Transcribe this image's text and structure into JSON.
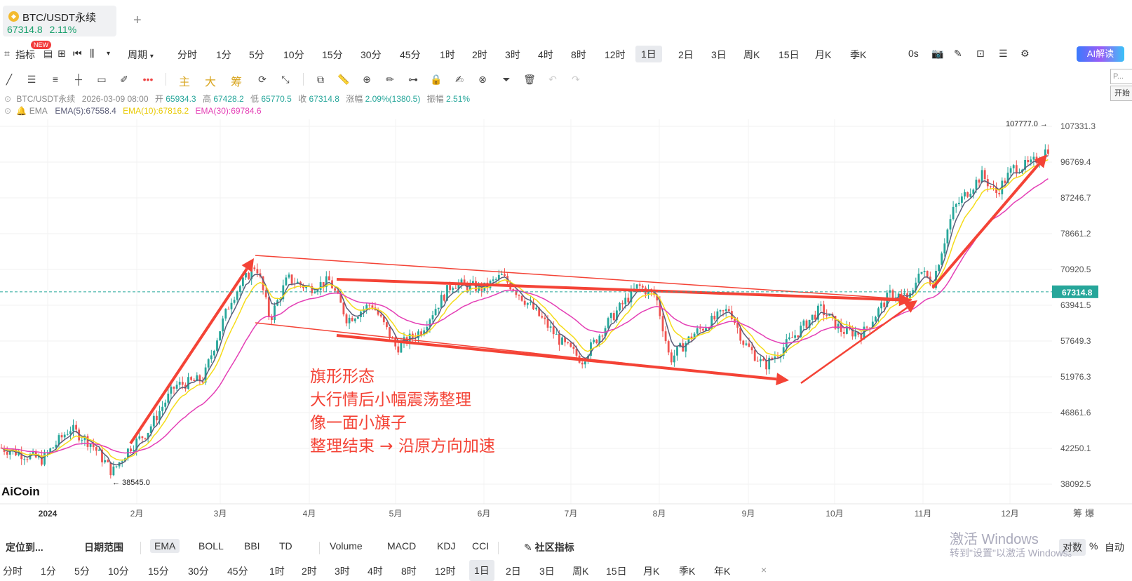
{
  "tab": {
    "symbol": "BTC/USDT永续",
    "price": "67314.8",
    "change": "2.11%",
    "add": "+"
  },
  "toolbar": {
    "indicators_label": "指标",
    "new_badge": "NEW",
    "period_label": "周期",
    "periods": [
      "分时",
      "1分",
      "5分",
      "10分",
      "15分",
      "30分",
      "45分",
      "1时",
      "2时",
      "3时",
      "4时",
      "8时",
      "12时",
      "1日",
      "2日",
      "3日",
      "周K",
      "15日",
      "月K",
      "季K"
    ],
    "active_period": "1日",
    "countdown": "0s",
    "ai_label": "AI解读"
  },
  "drawing_tools": {
    "main_label": "主",
    "big_label": "大",
    "chip_label": "筹"
  },
  "side_panel": {
    "input_placeholder": "P...",
    "button_label": "开始"
  },
  "ohlc": {
    "symbol": "BTC/USDT永续",
    "datetime": "2026-03-09 08:00",
    "open_label": "开",
    "open": "65934.3",
    "high_label": "高",
    "high": "67428.2",
    "low_label": "低",
    "low": "65770.5",
    "close_label": "收",
    "close": "67314.8",
    "chg_label": "涨幅",
    "chg": "2.09%(1380.5)",
    "amp_label": "振幅",
    "amp": "2.51%"
  },
  "ema_row": {
    "name": "EMA",
    "ema5": "EMA(5):67558.4",
    "ema10": "EMA(10):67816.2",
    "ema30": "EMA(30):69784.6"
  },
  "chart_data": {
    "type": "candlestick",
    "y_ticks": [
      "107331.3",
      "96769.4",
      "87246.7",
      "78661.2",
      "70920.5",
      "63941.5",
      "57649.3",
      "51976.3",
      "46861.6",
      "42250.1",
      "38092.5"
    ],
    "x_ticks": [
      "2024",
      "2月",
      "3月",
      "4月",
      "5月",
      "6月",
      "7月",
      "8月",
      "9月",
      "10月",
      "11月",
      "12月"
    ],
    "current_price_tag": "67314.8",
    "max_label": "107777.0",
    "min_label": "38545.0",
    "y_log_scale": true,
    "ylim": [
      36000,
      112000
    ],
    "approx_close_path": [
      {
        "x": "2024",
        "y": 42500
      },
      {
        "x": "1月中",
        "y": 44500
      },
      {
        "x": "1月下",
        "y": 40000
      },
      {
        "x": "2月",
        "y": 43000
      },
      {
        "x": "2月下",
        "y": 52000
      },
      {
        "x": "3月中",
        "y": 73000
      },
      {
        "x": "4月",
        "y": 68000
      },
      {
        "x": "4月下",
        "y": 63000
      },
      {
        "x": "5月",
        "y": 61000
      },
      {
        "x": "6月",
        "y": 69000
      },
      {
        "x": "7月",
        "y": 57000
      },
      {
        "x": "8月",
        "y": 63000
      },
      {
        "x": "9月",
        "y": 55000
      },
      {
        "x": "10月",
        "y": 62000
      },
      {
        "x": "11月",
        "y": 70000
      },
      {
        "x": "12月",
        "y": 96000
      },
      {
        "x": "12月下",
        "y": 104000
      }
    ],
    "series": [
      {
        "name": "EMA(5)",
        "color": "#5b5d78"
      },
      {
        "name": "EMA(10)",
        "color": "#f5dc19"
      },
      {
        "name": "EMA(30)",
        "color": "#e43fb5"
      }
    ],
    "annotations": [
      "旗形形态",
      "大行情后小幅震荡整理",
      "像一面小旗子",
      "整理结束 → 沿原方向加速"
    ],
    "logo": "AiCoin",
    "colors": {
      "up": "#26a69a",
      "down": "#ef5350",
      "annotation": "#f44336",
      "price_line": "#26a69a"
    }
  },
  "bottom_bar": {
    "locate": "定位到...",
    "date_range": "日期范围",
    "indicators": [
      "EMA",
      "BOLL",
      "BBI",
      "TD",
      "Volume",
      "MACD",
      "KDJ",
      "CCI"
    ],
    "community": "社区指标",
    "log_label": "对数",
    "pct_label": "%",
    "auto_label": "自动"
  },
  "bottom_periods": [
    "分时",
    "1分",
    "5分",
    "10分",
    "15分",
    "30分",
    "45分",
    "1时",
    "2时",
    "3时",
    "4时",
    "8时",
    "12时",
    "1日",
    "2日",
    "3日",
    "周K",
    "15日",
    "月K",
    "季K",
    "年K"
  ],
  "right_header": [
    "筹",
    "爆"
  ],
  "watermark": {
    "line1": "激活 Windows",
    "line2": "转到\"设置\"以激活 Windows。"
  }
}
